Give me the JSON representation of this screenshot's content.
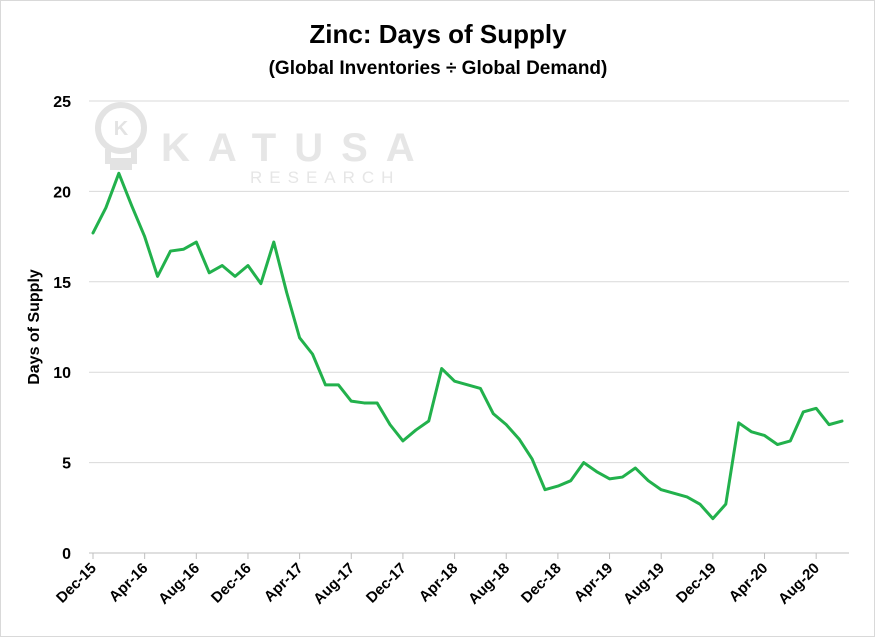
{
  "chart_data": {
    "type": "line",
    "title": "Zinc: Days of Supply",
    "subtitle": "(Global Inventories ÷ Global Demand)",
    "ylabel": "Days of Supply",
    "xlabel": "",
    "ylim": [
      0,
      25
    ],
    "yticks": [
      0,
      5,
      10,
      15,
      20,
      25
    ],
    "xtick_labels": [
      "Dec-15",
      "Apr-16",
      "Aug-16",
      "Dec-16",
      "Apr-17",
      "Aug-17",
      "Dec-17",
      "Apr-18",
      "Aug-18",
      "Dec-18",
      "Apr-19",
      "Aug-19",
      "Dec-19",
      "Apr-20",
      "Aug-20"
    ],
    "grid": true,
    "color": "#22b14c",
    "x": [
      "Dec-15",
      "Jan-16",
      "Feb-16",
      "Mar-16",
      "Apr-16",
      "May-16",
      "Jun-16",
      "Jul-16",
      "Aug-16",
      "Sep-16",
      "Oct-16",
      "Nov-16",
      "Dec-16",
      "Jan-17",
      "Feb-17",
      "Mar-17",
      "Apr-17",
      "May-17",
      "Jun-17",
      "Jul-17",
      "Aug-17",
      "Sep-17",
      "Oct-17",
      "Nov-17",
      "Dec-17",
      "Jan-18",
      "Feb-18",
      "Mar-18",
      "Apr-18",
      "May-18",
      "Jun-18",
      "Jul-18",
      "Aug-18",
      "Sep-18",
      "Oct-18",
      "Nov-18",
      "Dec-18",
      "Jan-19",
      "Feb-19",
      "Mar-19",
      "Apr-19",
      "May-19",
      "Jun-19",
      "Jul-19",
      "Aug-19",
      "Sep-19",
      "Oct-19",
      "Nov-19",
      "Dec-19",
      "Jan-20",
      "Feb-20",
      "Mar-20",
      "Apr-20",
      "May-20",
      "Jun-20",
      "Jul-20",
      "Aug-20",
      "Sep-20",
      "Oct-20"
    ],
    "series": [
      {
        "values": [
          17.7,
          19.1,
          21.0,
          19.2,
          17.5,
          15.3,
          16.7,
          16.8,
          17.2,
          15.5,
          15.9,
          15.3,
          15.9,
          14.9,
          17.2,
          14.4,
          11.9,
          11.0,
          9.3,
          9.3,
          8.4,
          8.3,
          8.3,
          7.1,
          6.2,
          6.8,
          7.3,
          10.2,
          9.5,
          9.3,
          9.1,
          7.7,
          7.1,
          6.3,
          5.2,
          3.5,
          3.7,
          4.0,
          5.0,
          4.5,
          4.1,
          4.2,
          4.7,
          4.0,
          3.5,
          3.3,
          3.1,
          2.7,
          1.9,
          2.7,
          7.2,
          6.7,
          6.5,
          6.0,
          6.2,
          7.8,
          8.0,
          7.1,
          7.3
        ]
      }
    ]
  },
  "watermark": {
    "brand": "KATUSA",
    "sub": "RESEARCH",
    "logo_letter": "K"
  }
}
